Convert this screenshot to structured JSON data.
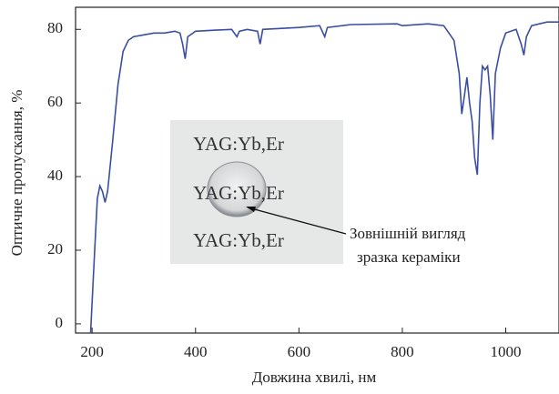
{
  "chart_data": {
    "type": "line",
    "xlabel": "Довжина хвилі, нм",
    "ylabel": "Оптичне пропускання, %",
    "x": [
      197,
      205,
      210,
      215,
      220,
      225,
      230,
      240,
      250,
      260,
      270,
      280,
      300,
      320,
      340,
      360,
      370,
      375,
      380,
      385,
      400,
      440,
      470,
      480,
      485,
      500,
      520,
      525,
      530,
      600,
      640,
      650,
      655,
      700,
      790,
      800,
      850,
      880,
      900,
      910,
      915,
      920,
      925,
      930,
      935,
      940,
      945,
      950,
      955,
      960,
      965,
      970,
      975,
      980,
      990,
      1000,
      1020,
      1030,
      1035,
      1040,
      1050,
      1080,
      1103
    ],
    "values": [
      -2.5,
      20,
      34,
      37.5,
      36,
      33,
      36,
      50,
      65,
      74,
      77,
      78,
      78.5,
      79,
      79,
      79.5,
      79,
      76,
      72,
      78,
      79.5,
      79.8,
      80,
      78,
      79.5,
      80,
      79.5,
      76,
      80,
      80.5,
      81,
      78,
      80.5,
      81.3,
      81.5,
      81,
      81.5,
      81,
      77,
      68,
      57,
      62,
      67,
      60,
      55,
      45,
      40.5,
      60,
      70,
      69,
      70,
      62,
      50,
      68,
      75,
      79,
      80,
      76,
      73,
      78,
      81,
      82,
      82
    ],
    "color": "#3a4fa3",
    "xlim": [
      168,
      1103
    ],
    "ylim": [
      -2.5,
      86
    ],
    "xticks": [
      200,
      400,
      600,
      800,
      1000
    ],
    "yticks": [
      0,
      20,
      40,
      60,
      80
    ],
    "inset_labels": [
      "YAG:Yb,Er",
      "YAG:Yb,Er",
      "YAG:Yb,Er"
    ],
    "annotation": [
      "Зовнішній вигляд",
      "зразка кераміки"
    ]
  }
}
